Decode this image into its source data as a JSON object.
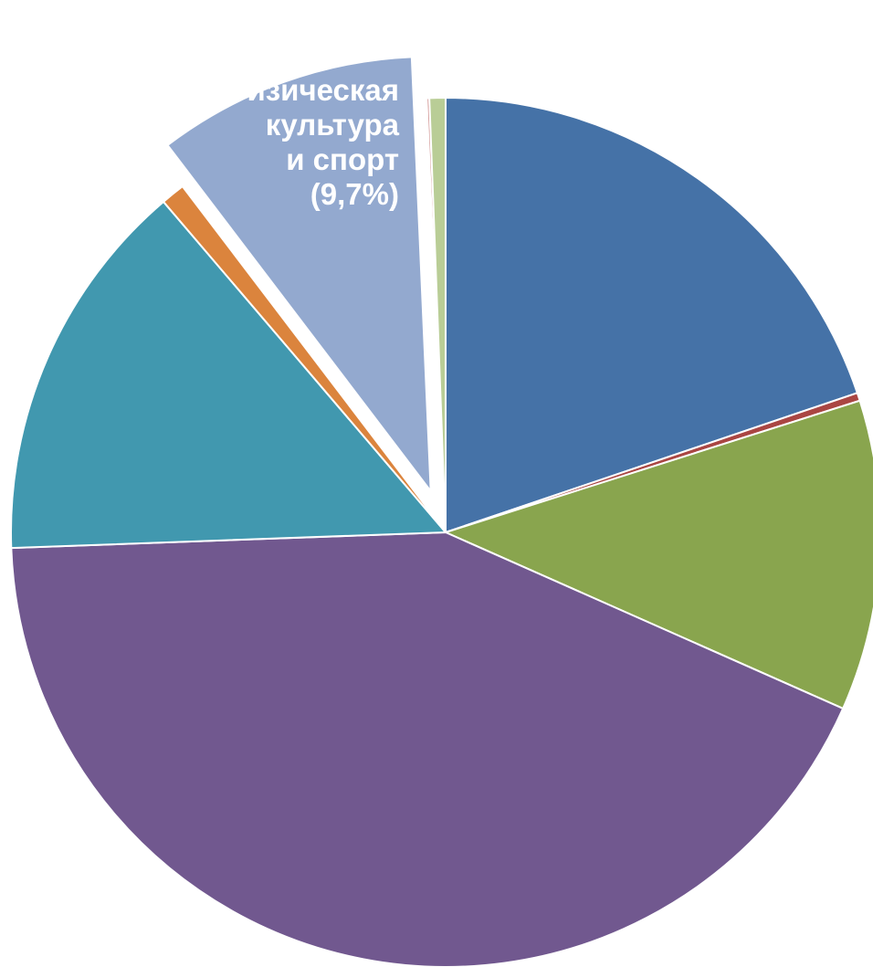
{
  "chart_data": {
    "type": "pie",
    "title": "",
    "start_angle_deg": 0,
    "direction": "clockwise",
    "slices": [
      {
        "value": 19.9,
        "color": "#4572A7",
        "label": ""
      },
      {
        "value": 0.3,
        "color": "#AA4643",
        "label": ""
      },
      {
        "value": 11.6,
        "color": "#89A54E",
        "label": ""
      },
      {
        "value": 43.0,
        "color": "#71588F",
        "label": ""
      },
      {
        "value": 14.4,
        "color": "#4198AF",
        "label": ""
      },
      {
        "value": 0.9,
        "color": "#DB843D",
        "label": ""
      },
      {
        "value": 9.7,
        "color": "#93A9CF",
        "label": "Физическая культура и спорт (9,7%)",
        "exploded": true
      },
      {
        "value": 0.1,
        "color": "#D19392",
        "label": ""
      },
      {
        "value": 0.6,
        "color": "#B9CD96",
        "label": ""
      }
    ],
    "label_lines": [
      "Физическая",
      "культура",
      "и спорт",
      "(9,7%)"
    ]
  }
}
